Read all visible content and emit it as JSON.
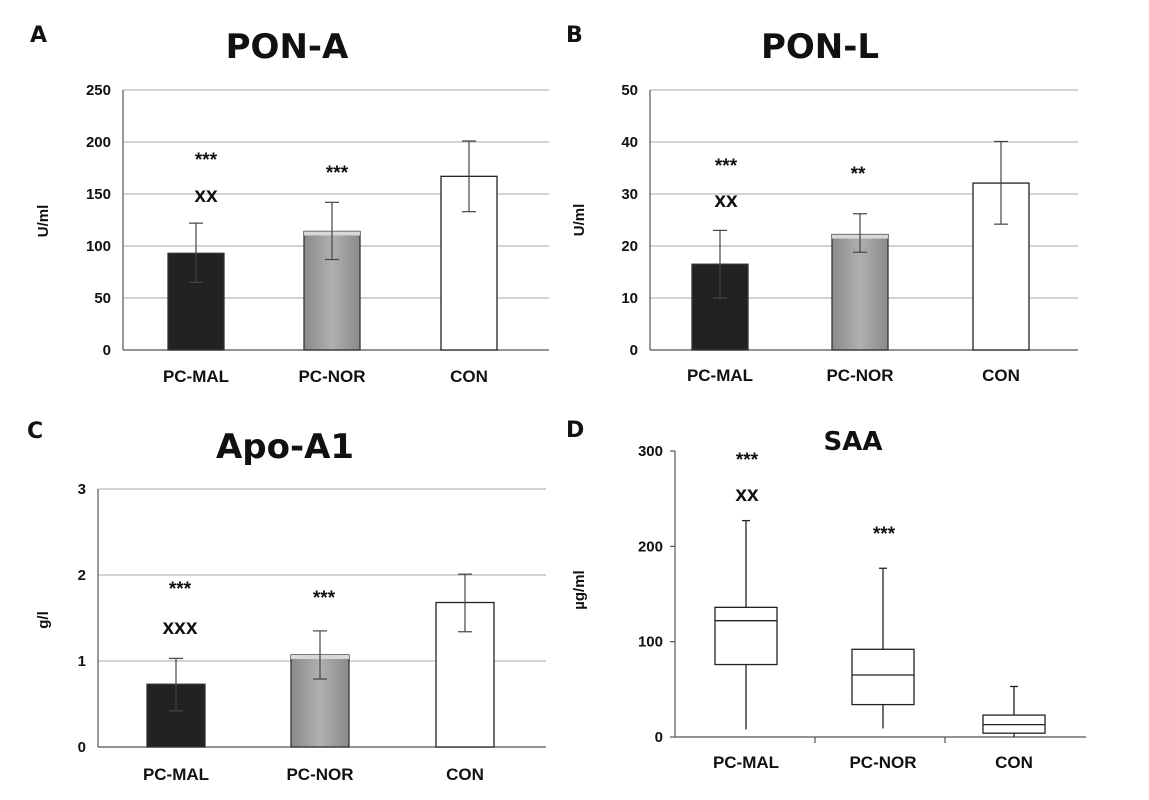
{
  "chart_data": [
    {
      "type": "bar",
      "panel": "A",
      "title": "PON-A",
      "ylabel": "U/ml",
      "ylim": [
        0,
        250
      ],
      "yticks": [
        0,
        50,
        100,
        150,
        200,
        250
      ],
      "categories": [
        "PC-MAL",
        "PC-NOR",
        "CON"
      ],
      "values": [
        93,
        114,
        167
      ],
      "error_bars": [
        [
          65,
          122
        ],
        [
          87,
          142
        ],
        [
          133,
          201
        ]
      ],
      "annotations": [
        [
          "***",
          "xx"
        ],
        [
          "***"
        ],
        []
      ],
      "bar_colors": [
        "#222222",
        "#999999",
        "#ffffff"
      ],
      "grid": true
    },
    {
      "type": "bar",
      "panel": "B",
      "title": "PON-L",
      "ylabel": "U/ml",
      "ylim": [
        0,
        50
      ],
      "yticks": [
        0,
        10,
        20,
        30,
        40,
        50
      ],
      "categories": [
        "PC-MAL",
        "PC-NOR",
        "CON"
      ],
      "values": [
        16.5,
        22.2,
        32.1
      ],
      "error_bars": [
        [
          10,
          23
        ],
        [
          18.8,
          26.2
        ],
        [
          24.2,
          40.1
        ]
      ],
      "annotations": [
        [
          "***",
          "xx"
        ],
        [
          "**"
        ],
        []
      ],
      "bar_colors": [
        "#222222",
        "#999999",
        "#ffffff"
      ],
      "grid": true
    },
    {
      "type": "bar",
      "panel": "C",
      "title": "Apo-A1",
      "ylabel": "g/l",
      "ylim": [
        0,
        3
      ],
      "yticks": [
        0,
        1,
        2,
        3
      ],
      "categories": [
        "PC-MAL",
        "PC-NOR",
        "CON"
      ],
      "values": [
        0.73,
        1.07,
        1.68
      ],
      "error_bars": [
        [
          0.42,
          1.03
        ],
        [
          0.79,
          1.35
        ],
        [
          1.34,
          2.01
        ]
      ],
      "annotations": [
        [
          "***",
          "xxx"
        ],
        [
          "***"
        ],
        []
      ],
      "bar_colors": [
        "#222222",
        "#999999",
        "#ffffff"
      ],
      "grid": true
    },
    {
      "type": "box",
      "panel": "D",
      "title": "SAA",
      "ylabel": "µg/ml",
      "ylim": [
        0,
        300
      ],
      "yticks": [
        0,
        100,
        200,
        300
      ],
      "categories": [
        "PC-MAL",
        "PC-NOR",
        "CON"
      ],
      "boxes": [
        {
          "min": 8,
          "q1": 76,
          "median": 122,
          "q3": 136,
          "max": 227
        },
        {
          "min": 9,
          "q1": 34,
          "median": 65,
          "q3": 92,
          "max": 177
        },
        {
          "min": 0,
          "q1": 4,
          "median": 13,
          "q3": 23,
          "max": 53
        }
      ],
      "annotations": [
        [
          "***",
          "xx"
        ],
        [
          "***"
        ],
        []
      ],
      "grid": false
    }
  ]
}
